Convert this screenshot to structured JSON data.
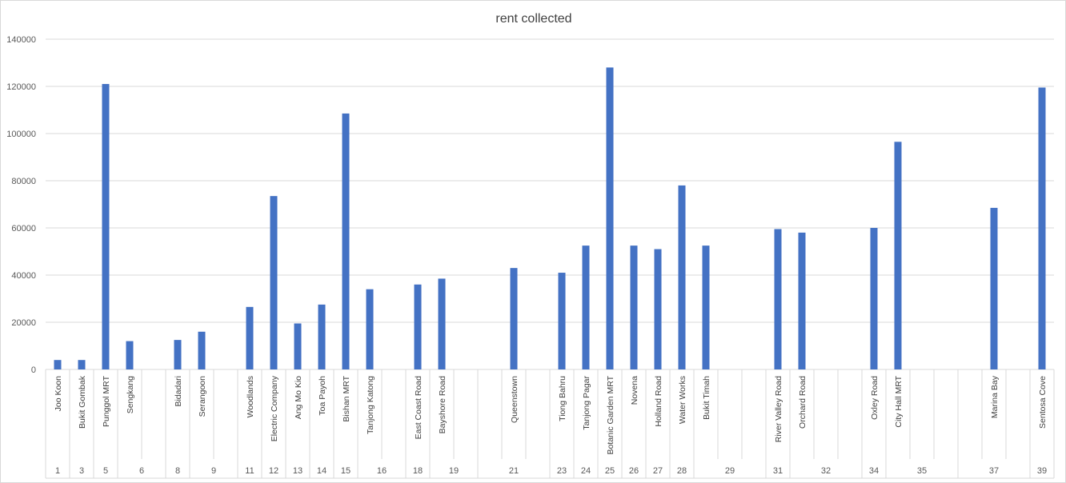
{
  "chart_data": {
    "type": "bar",
    "title": "rent collected",
    "xlabel": "",
    "ylabel": "",
    "ylim": [
      0,
      140000
    ],
    "yticks": [
      0,
      20000,
      40000,
      60000,
      80000,
      100000,
      120000,
      140000
    ],
    "grid": true,
    "legend": "none",
    "bar_color": "#4472C4",
    "gridline_color": "#d9d9d9",
    "groups": [
      {
        "label": "1",
        "categories": [
          "Joo Koon"
        ],
        "values": [
          4000
        ]
      },
      {
        "label": "3",
        "categories": [
          "Bukit Gombak"
        ],
        "values": [
          4000
        ]
      },
      {
        "label": "5",
        "categories": [
          "Punggol MRT"
        ],
        "values": [
          121000
        ]
      },
      {
        "label": "6",
        "categories": [
          "Sengkang",
          ""
        ],
        "values": [
          12000,
          null
        ]
      },
      {
        "label": "8",
        "categories": [
          "Bidadari"
        ],
        "values": [
          12500
        ]
      },
      {
        "label": "9",
        "categories": [
          "Serangoon",
          ""
        ],
        "values": [
          16000,
          null
        ]
      },
      {
        "label": "11",
        "categories": [
          "Woodlands"
        ],
        "values": [
          26500
        ]
      },
      {
        "label": "12",
        "categories": [
          "Electric Company"
        ],
        "values": [
          73500
        ]
      },
      {
        "label": "13",
        "categories": [
          "Ang Mo Kio"
        ],
        "values": [
          19500
        ]
      },
      {
        "label": "14",
        "categories": [
          "Toa Payoh"
        ],
        "values": [
          27500
        ]
      },
      {
        "label": "15",
        "categories": [
          "Bishan MRT"
        ],
        "values": [
          108500
        ]
      },
      {
        "label": "16",
        "categories": [
          "Tanjong Katong",
          ""
        ],
        "values": [
          34000,
          null
        ]
      },
      {
        "label": "18",
        "categories": [
          "East Coast Road"
        ],
        "values": [
          36000
        ]
      },
      {
        "label": "19",
        "categories": [
          "Bayshore Road",
          ""
        ],
        "values": [
          38500,
          null
        ]
      },
      {
        "label": "21",
        "categories": [
          "",
          "Queenstown",
          ""
        ],
        "values": [
          null,
          43000,
          null
        ]
      },
      {
        "label": "23",
        "categories": [
          "Tiong Bahru"
        ],
        "values": [
          41000
        ]
      },
      {
        "label": "24",
        "categories": [
          "Tanjong Pagar"
        ],
        "values": [
          52500
        ]
      },
      {
        "label": "25",
        "categories": [
          "Botanic Garden MRT"
        ],
        "values": [
          128000
        ]
      },
      {
        "label": "26",
        "categories": [
          "Novena"
        ],
        "values": [
          52500
        ]
      },
      {
        "label": "27",
        "categories": [
          "Holland Road"
        ],
        "values": [
          51000
        ]
      },
      {
        "label": "28",
        "categories": [
          "Water Works"
        ],
        "values": [
          78000
        ]
      },
      {
        "label": "29",
        "categories": [
          "Bukit Timah",
          "",
          ""
        ],
        "values": [
          52500,
          null,
          null
        ]
      },
      {
        "label": "31",
        "categories": [
          "River Valley Road"
        ],
        "values": [
          59500
        ]
      },
      {
        "label": "32",
        "categories": [
          "Orchard Road",
          "",
          ""
        ],
        "values": [
          58000,
          null,
          null
        ]
      },
      {
        "label": "34",
        "categories": [
          "Oxley Road"
        ],
        "values": [
          60000
        ]
      },
      {
        "label": "35",
        "categories": [
          "City Hall MRT",
          "",
          ""
        ],
        "values": [
          96500,
          null,
          null
        ]
      },
      {
        "label": "37",
        "categories": [
          "",
          "Marina Bay",
          ""
        ],
        "values": [
          null,
          68500,
          null
        ]
      },
      {
        "label": "39",
        "categories": [
          "Sentosa Cove"
        ],
        "values": [
          119500
        ]
      }
    ]
  }
}
